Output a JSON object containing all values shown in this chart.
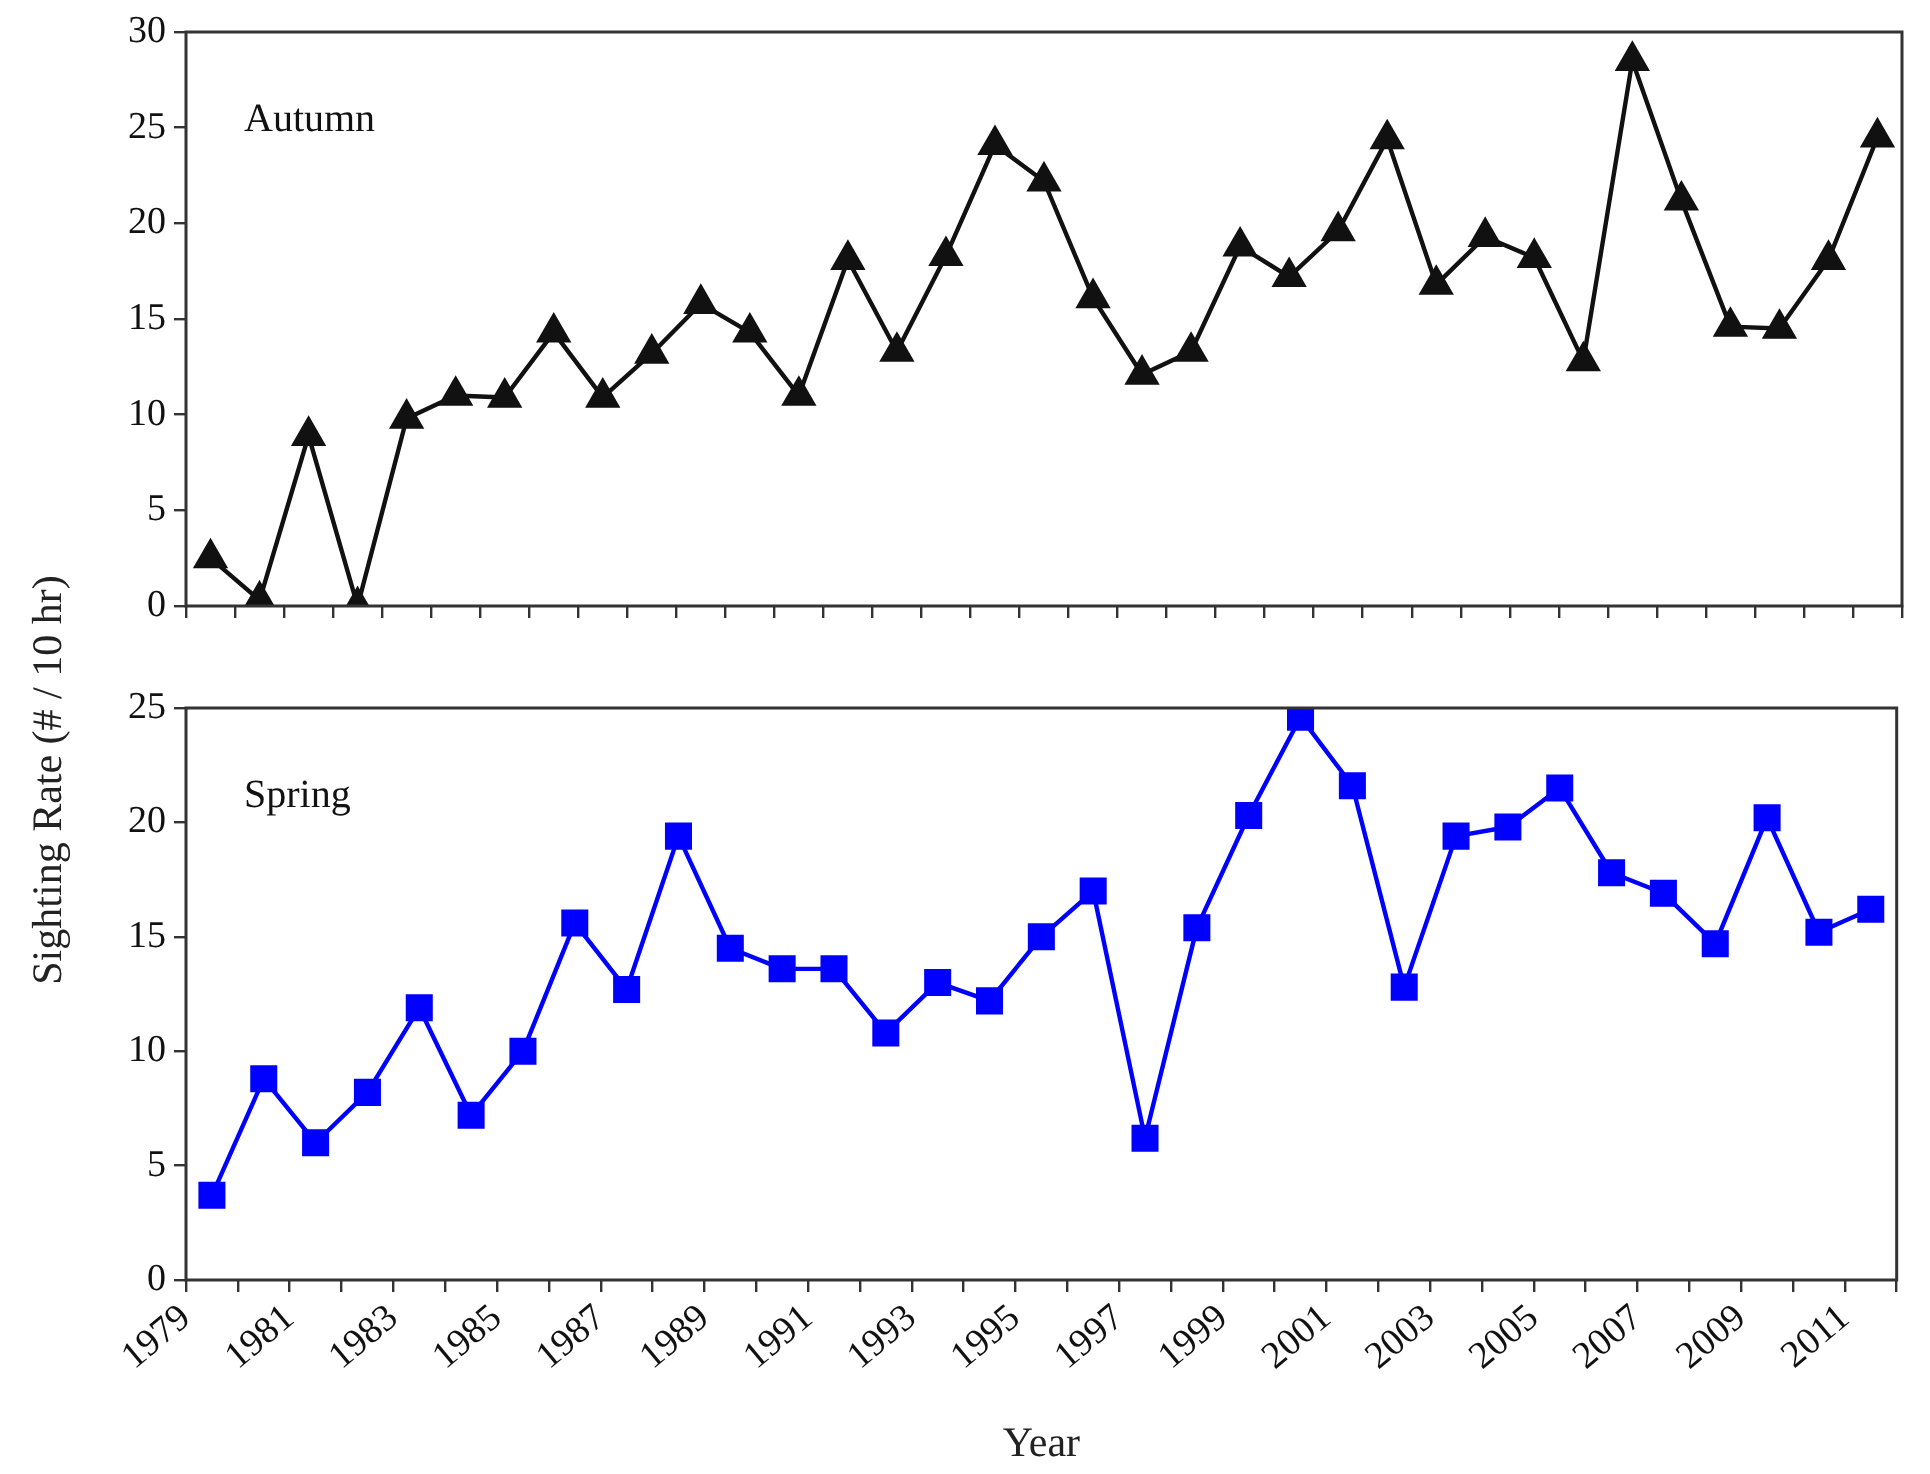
{
  "chart_data": [
    {
      "type": "line",
      "ylabel": "Sighting Rate (# / 10 hr)",
      "annotations": [
        "Autumn"
      ],
      "categories": [
        null,
        null,
        null,
        null,
        null,
        null,
        null,
        null,
        null,
        null,
        null,
        null,
        null,
        null,
        null,
        null,
        null,
        null,
        null,
        null,
        null,
        null,
        null,
        null,
        null,
        null,
        null,
        null,
        null,
        null,
        null,
        null,
        null,
        null,
        null
      ],
      "series": [
        {
          "color": "#111111",
          "marker": "triangle",
          "values": [
            2.5,
            0.3,
            8.9,
            0,
            9.8,
            11.0,
            10.9,
            14.3,
            10.9,
            13.2,
            15.8,
            14.3,
            11.0,
            18.1,
            13.3,
            18.3,
            24.1,
            22.2,
            16.1,
            12.1,
            13.3,
            18.8,
            17.2,
            19.6,
            24.4,
            16.8,
            19.3,
            18.2,
            12.8,
            28.5,
            21.2,
            14.6,
            14.5,
            18.1,
            24.5
          ]
        }
      ],
      "ylim": [
        0,
        30
      ],
      "yticks": [
        0,
        5,
        10,
        15,
        20,
        25,
        30
      ],
      "tick_labels": "y",
      "grid": false,
      "legend": false,
      "line_style": "solid"
    },
    {
      "type": "line",
      "xlabel": "Year",
      "annotations": [
        "Spring"
      ],
      "x": [
        1979.5,
        1980.5,
        1981.5,
        1982.5,
        1983.5,
        1984.5,
        1985.5,
        1986.5,
        1987.5,
        1988.5,
        1989.5,
        1990.5,
        1991.5,
        1992.5,
        1993.5,
        1994.5,
        1995.5,
        1996.5,
        1997.5,
        1998.5,
        1999.5,
        2000.5,
        2001.5,
        2002.5,
        2003.5,
        2004.5,
        2005.5,
        2006.5,
        2007.5,
        2008.5,
        2009.5,
        2010.5,
        2011.5
      ],
      "series": [
        {
          "color": "#0000ff",
          "marker": "square",
          "values": [
            3.7,
            8.8,
            6.0,
            8.2,
            11.9,
            7.2,
            10.0,
            15.6,
            12.7,
            19.4,
            14.5,
            13.6,
            13.6,
            10.8,
            13.0,
            12.2,
            15.0,
            17.0,
            6.2,
            15.4,
            20.3,
            24.6,
            21.6,
            12.8,
            19.4,
            19.8,
            21.5,
            17.8,
            16.9,
            14.7,
            20.2,
            15.2,
            16.2
          ]
        }
      ],
      "xlim": [
        1979,
        2012
      ],
      "xticks": [
        1979,
        {
          "value": 1980,
          "label": null
        },
        1981,
        {
          "value": 1982,
          "label": null
        },
        1983,
        {
          "value": 1984,
          "label": null
        },
        1985,
        {
          "value": 1986,
          "label": null
        },
        1987,
        {
          "value": 1988,
          "label": null
        },
        1989,
        {
          "value": 1990,
          "label": null
        },
        1991,
        {
          "value": 1992,
          "label": null
        },
        1993,
        {
          "value": 1994,
          "label": null
        },
        1995,
        {
          "value": 1996,
          "label": null
        },
        1997,
        {
          "value": 1998,
          "label": null
        },
        1999,
        {
          "value": 2000,
          "label": null
        },
        2001,
        {
          "value": 2002,
          "label": null
        },
        2003,
        {
          "value": 2004,
          "label": null
        },
        2005,
        {
          "value": 2006,
          "label": null
        },
        2007,
        {
          "value": 2008,
          "label": null
        },
        2009,
        {
          "value": 2010,
          "label": null
        },
        2011,
        {
          "value": 2012,
          "label": null
        }
      ],
      "ylim": [
        0,
        25
      ],
      "yticks": [
        0,
        5,
        10,
        15,
        20,
        25
      ],
      "grid": false,
      "legend": false,
      "line_style": "solid"
    }
  ]
}
